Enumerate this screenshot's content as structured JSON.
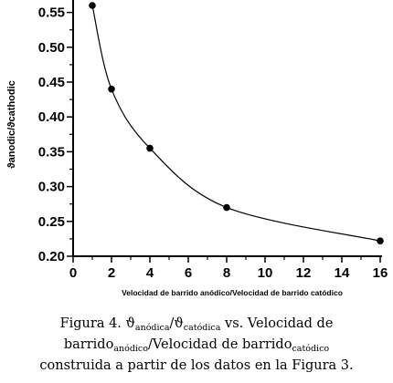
{
  "chart_data": {
    "type": "line",
    "x": [
      1,
      2,
      4,
      8,
      16
    ],
    "y": [
      0.56,
      0.44,
      0.355,
      0.27,
      0.222
    ],
    "xlim": [
      0,
      16
    ],
    "ylim": [
      0.2,
      0.56
    ],
    "xticks": [
      "0",
      "2",
      "4",
      "6",
      "8",
      "10",
      "12",
      "14",
      "16"
    ],
    "yticks": [
      "0.20",
      "0.25",
      "0.30",
      "0.35",
      "0.40",
      "0.45",
      "0.50",
      "0.55"
    ],
    "xlabel": "Velocidad de barrido anódico/Velocidad de barrido catódico",
    "ylabel": "ϑanodic/ϑcathodic",
    "grid": false,
    "legend": "none"
  },
  "caption": {
    "line1_prefix": "Figura 4. ",
    "theta1": "ϑ",
    "sub1": "anódica",
    "slash": "/",
    "theta2": "ϑ",
    "sub2": "catódica",
    "line1_suffix": " vs. Velocidad de",
    "line2_word1": "barrido",
    "sub3": "anódico",
    "line2_mid": "/Velocidad de barrido",
    "sub4": "catódico",
    "line3": "construida a partir de los datos en la Figura 3."
  }
}
